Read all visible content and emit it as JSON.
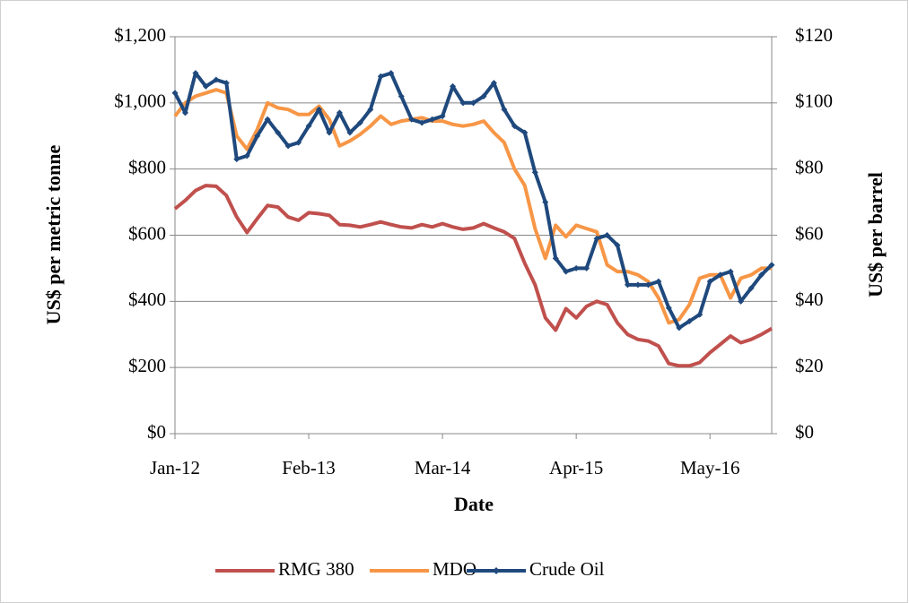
{
  "chart_data": {
    "type": "line",
    "x_label": "Date",
    "y_label": "US$ per metric tonne",
    "y2_label": "US$ per barrel",
    "categories": [
      "Jan-12",
      null,
      null,
      null,
      null,
      null,
      null,
      null,
      null,
      null,
      null,
      null,
      null,
      "Feb-13",
      null,
      null,
      null,
      null,
      null,
      null,
      null,
      null,
      null,
      null,
      null,
      null,
      "Mar-14",
      null,
      null,
      null,
      null,
      null,
      null,
      null,
      null,
      null,
      null,
      null,
      null,
      "Apr-15",
      null,
      null,
      null,
      null,
      null,
      null,
      null,
      null,
      null,
      null,
      null,
      null,
      "May-16",
      null,
      null,
      null,
      null,
      null,
      null
    ],
    "ylim": [
      0,
      1200
    ],
    "yticks": [
      {
        "value": 0,
        "label": "$0"
      },
      {
        "value": 200,
        "label": "$200"
      },
      {
        "value": 400,
        "label": "$400"
      },
      {
        "value": 600,
        "label": "$600"
      },
      {
        "value": 800,
        "label": "$800"
      },
      {
        "value": 1000,
        "label": "$1,000"
      },
      {
        "value": 1200,
        "label": "$1,200"
      }
    ],
    "y2lim": [
      0,
      120
    ],
    "y2ticks": [
      {
        "value": 0,
        "label": "$0"
      },
      {
        "value": 20,
        "label": "$20"
      },
      {
        "value": 40,
        "label": "$40"
      },
      {
        "value": 60,
        "label": "$60"
      },
      {
        "value": 80,
        "label": "$80"
      },
      {
        "value": 100,
        "label": "$100"
      },
      {
        "value": 120,
        "label": "$120"
      }
    ],
    "grid": true,
    "legend": "bottom",
    "series": [
      {
        "name": "RMG 380",
        "color": "#c0504d",
        "values": [
          680,
          705,
          735,
          750,
          748,
          720,
          655,
          608,
          650,
          690,
          685,
          655,
          645,
          668,
          665,
          660,
          632,
          630,
          625,
          632,
          640,
          632,
          625,
          622,
          632,
          625,
          635,
          625,
          618,
          622,
          635,
          622,
          610,
          590,
          515,
          450,
          350,
          313,
          378,
          350,
          385,
          400,
          390,
          335,
          300,
          285,
          280,
          265,
          212,
          205,
          205,
          215,
          245,
          270,
          295,
          275,
          285,
          300,
          318
        ]
      },
      {
        "name": "MDO",
        "color": "#f79646",
        "values": [
          960,
          1000,
          1020,
          1030,
          1040,
          1030,
          900,
          860,
          920,
          1000,
          985,
          980,
          965,
          965,
          990,
          950,
          870,
          885,
          905,
          930,
          960,
          935,
          945,
          950,
          955,
          945,
          945,
          935,
          930,
          935,
          945,
          910,
          880,
          800,
          750,
          620,
          530,
          630,
          595,
          630,
          620,
          610,
          510,
          490,
          490,
          480,
          460,
          410,
          335,
          345,
          390,
          470,
          480,
          480,
          410,
          470,
          480,
          500,
          500
        ]
      },
      {
        "name": "Crude Oil",
        "color": "#1f497d",
        "axis": "y2",
        "marker": "diamond",
        "values": [
          103,
          97,
          109,
          105,
          107,
          106,
          83,
          84,
          90,
          95,
          91,
          87,
          88,
          93,
          98,
          91,
          97,
          91,
          94,
          98,
          108,
          109,
          102,
          95,
          94,
          95,
          96,
          105,
          100,
          100,
          102,
          106,
          98,
          93,
          91,
          79,
          70,
          53,
          49,
          50,
          50,
          59,
          60,
          57,
          45,
          45,
          45,
          46,
          38,
          32,
          34,
          36,
          46,
          48,
          49,
          40,
          44,
          48,
          51
        ]
      }
    ]
  }
}
